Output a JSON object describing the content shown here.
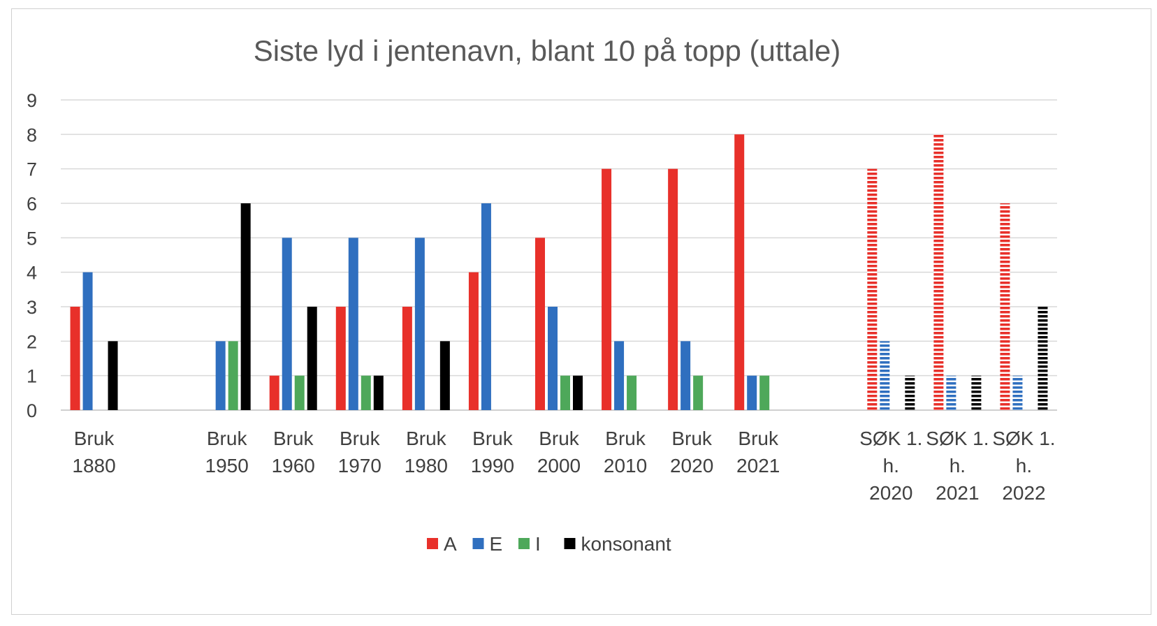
{
  "chart_data": {
    "type": "bar",
    "title": "Siste lyd i jentenavn, blant 10 på topp (uttale)",
    "xlabel": "",
    "ylabel": "",
    "ylim": [
      0,
      9
    ],
    "yticks": [
      "0",
      "1",
      "2",
      "3",
      "4",
      "5",
      "6",
      "7",
      "8",
      "9"
    ],
    "grid": true,
    "legend_position": "bottom",
    "categories": [
      {
        "lines": [
          "Bruk",
          "1880"
        ],
        "pattern": "solid"
      },
      {
        "lines": [],
        "pattern": "solid"
      },
      {
        "lines": [
          "Bruk",
          "1950"
        ],
        "pattern": "solid"
      },
      {
        "lines": [
          "Bruk",
          "1960"
        ],
        "pattern": "solid"
      },
      {
        "lines": [
          "Bruk",
          "1970"
        ],
        "pattern": "solid"
      },
      {
        "lines": [
          "Bruk",
          "1980"
        ],
        "pattern": "solid"
      },
      {
        "lines": [
          "Bruk",
          "1990"
        ],
        "pattern": "solid"
      },
      {
        "lines": [
          "Bruk",
          "2000"
        ],
        "pattern": "solid"
      },
      {
        "lines": [
          "Bruk",
          "2010"
        ],
        "pattern": "solid"
      },
      {
        "lines": [
          "Bruk",
          "2020"
        ],
        "pattern": "solid"
      },
      {
        "lines": [
          "Bruk",
          "2021"
        ],
        "pattern": "solid"
      },
      {
        "lines": [],
        "pattern": "solid"
      },
      {
        "lines": [
          "SØK 1.",
          "h.",
          "2020"
        ],
        "pattern": "striped"
      },
      {
        "lines": [
          "SØK 1.",
          "h.",
          "2021"
        ],
        "pattern": "striped"
      },
      {
        "lines": [
          "SØK 1.",
          "h.",
          "2022"
        ],
        "pattern": "striped"
      }
    ],
    "series": [
      {
        "name": "A",
        "color": "#e8302a",
        "values": [
          3,
          null,
          0,
          1,
          3,
          3,
          4,
          5,
          7,
          7,
          8,
          null,
          7,
          8,
          6
        ]
      },
      {
        "name": "E",
        "color": "#2f6fbf",
        "values": [
          4,
          null,
          2,
          5,
          5,
          5,
          6,
          3,
          2,
          2,
          1,
          null,
          2,
          1,
          1
        ]
      },
      {
        "name": "I",
        "color": "#4ea85a",
        "values": [
          0,
          null,
          2,
          1,
          1,
          0,
          0,
          1,
          1,
          1,
          1,
          null,
          0,
          0,
          0
        ]
      },
      {
        "name": "konsonant",
        "color": "#000000",
        "values": [
          2,
          null,
          6,
          3,
          1,
          2,
          0,
          1,
          0,
          0,
          0,
          null,
          1,
          1,
          3
        ]
      }
    ]
  }
}
